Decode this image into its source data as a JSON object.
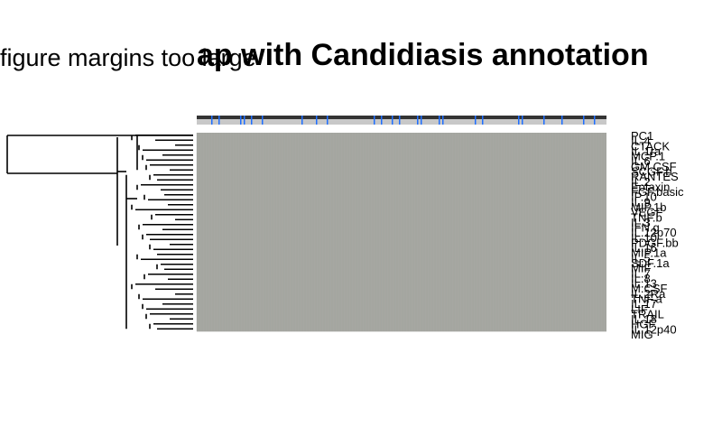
{
  "message": "figure margins too large",
  "chart_data": {
    "type": "heatmap",
    "title": "ap with Candidiasis annotation",
    "xlabel": "",
    "ylabel": "",
    "row_labels": [
      "PC1",
      "IL.4",
      "CTACK",
      "IL.1ra",
      "MCP.1",
      "IL.6",
      "GM.CSF",
      "SCGF.b",
      "RANTES",
      "IL.2",
      "Eotaxin",
      "FGF.basic",
      "IP.10",
      "IL.9",
      "MIP.1b",
      "VEGF",
      "TNF.b",
      "IL.3",
      "IFN.g",
      "IL.12p70",
      "IL.10",
      "PDGF.bb",
      "IL.16",
      "MIP.1a",
      "IL.5",
      "SDF.1a",
      "MIF",
      "IL.7",
      "IL.8",
      "IL.13",
      "M.CSF",
      "IL.2Ra",
      "TNF.a",
      "IL.17",
      "LIF",
      "TRAIL",
      "IL.18",
      "HGF",
      "IL.12p40",
      "MIG"
    ],
    "cell_color": "#a6a7a2",
    "annotation_colors": {
      "base": "#c8c8c8",
      "marked": "#1f6fff"
    },
    "grid": false,
    "legend": "none"
  },
  "colors": {
    "dendrogram": "#000000",
    "text": "#000000"
  }
}
